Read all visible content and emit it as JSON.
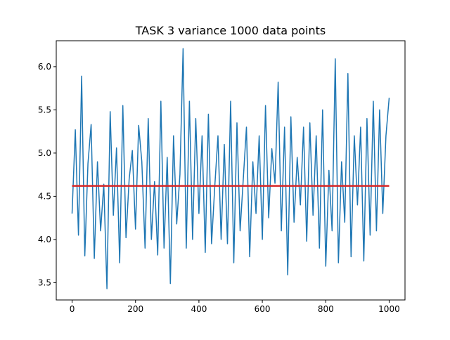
{
  "chart_data": {
    "type": "line",
    "title": "TASK 3 variance 1000 data points",
    "xlabel": "",
    "ylabel": "",
    "xlim": [
      -50,
      1050
    ],
    "ylim": [
      3.3,
      6.3
    ],
    "xticks": [
      0,
      200,
      400,
      600,
      800,
      1000
    ],
    "yticks": [
      3.5,
      4.0,
      4.5,
      5.0,
      5.5,
      6.0
    ],
    "xtick_labels": [
      "0",
      "200",
      "400",
      "600",
      "800",
      "1000"
    ],
    "ytick_labels": [
      "3.5",
      "4.0",
      "4.5",
      "5.0",
      "5.5",
      "6.0"
    ],
    "grid": false,
    "series": [
      {
        "color": "#1f77b4",
        "x": [
          0,
          10,
          20,
          30,
          40,
          50,
          60,
          70,
          80,
          90,
          100,
          110,
          120,
          130,
          140,
          150,
          160,
          170,
          180,
          190,
          200,
          210,
          220,
          230,
          240,
          250,
          260,
          270,
          280,
          290,
          300,
          310,
          320,
          330,
          340,
          350,
          360,
          370,
          380,
          390,
          400,
          410,
          420,
          430,
          440,
          450,
          460,
          470,
          480,
          490,
          500,
          510,
          520,
          530,
          540,
          550,
          560,
          570,
          580,
          590,
          600,
          610,
          620,
          630,
          640,
          650,
          660,
          670,
          680,
          690,
          700,
          710,
          720,
          730,
          740,
          750,
          760,
          770,
          780,
          790,
          800,
          810,
          820,
          830,
          840,
          850,
          860,
          870,
          880,
          890,
          900,
          910,
          920,
          930,
          940,
          950,
          960,
          970,
          980,
          990,
          1000
        ],
        "y": [
          4.3,
          5.27,
          4.05,
          5.89,
          3.81,
          4.88,
          5.33,
          3.78,
          4.9,
          4.1,
          4.64,
          3.43,
          5.48,
          4.28,
          5.06,
          3.73,
          5.55,
          4.02,
          4.7,
          5.03,
          4.12,
          5.32,
          4.9,
          3.9,
          5.4,
          4.0,
          4.67,
          3.82,
          5.6,
          3.9,
          4.95,
          3.49,
          5.2,
          4.18,
          4.75,
          6.21,
          3.9,
          5.6,
          4.0,
          5.4,
          4.3,
          5.2,
          3.85,
          5.45,
          3.95,
          4.62,
          5.2,
          4.0,
          5.1,
          3.95,
          5.6,
          3.73,
          5.35,
          4.1,
          4.7,
          5.3,
          3.8,
          4.9,
          4.3,
          5.2,
          4.0,
          5.55,
          4.25,
          5.05,
          4.65,
          5.82,
          4.1,
          5.3,
          3.59,
          5.42,
          4.2,
          4.95,
          4.4,
          5.3,
          3.98,
          5.35,
          4.28,
          5.2,
          3.9,
          5.5,
          3.69,
          4.8,
          4.1,
          6.09,
          3.73,
          4.9,
          4.2,
          5.92,
          3.8,
          5.2,
          4.4,
          5.3,
          3.75,
          5.4,
          4.05,
          5.6,
          4.1,
          5.5,
          4.3,
          5.2,
          5.64
        ]
      },
      {
        "color": "#d62728",
        "x": [
          0,
          1000
        ],
        "y": [
          4.62,
          4.62
        ]
      }
    ]
  }
}
